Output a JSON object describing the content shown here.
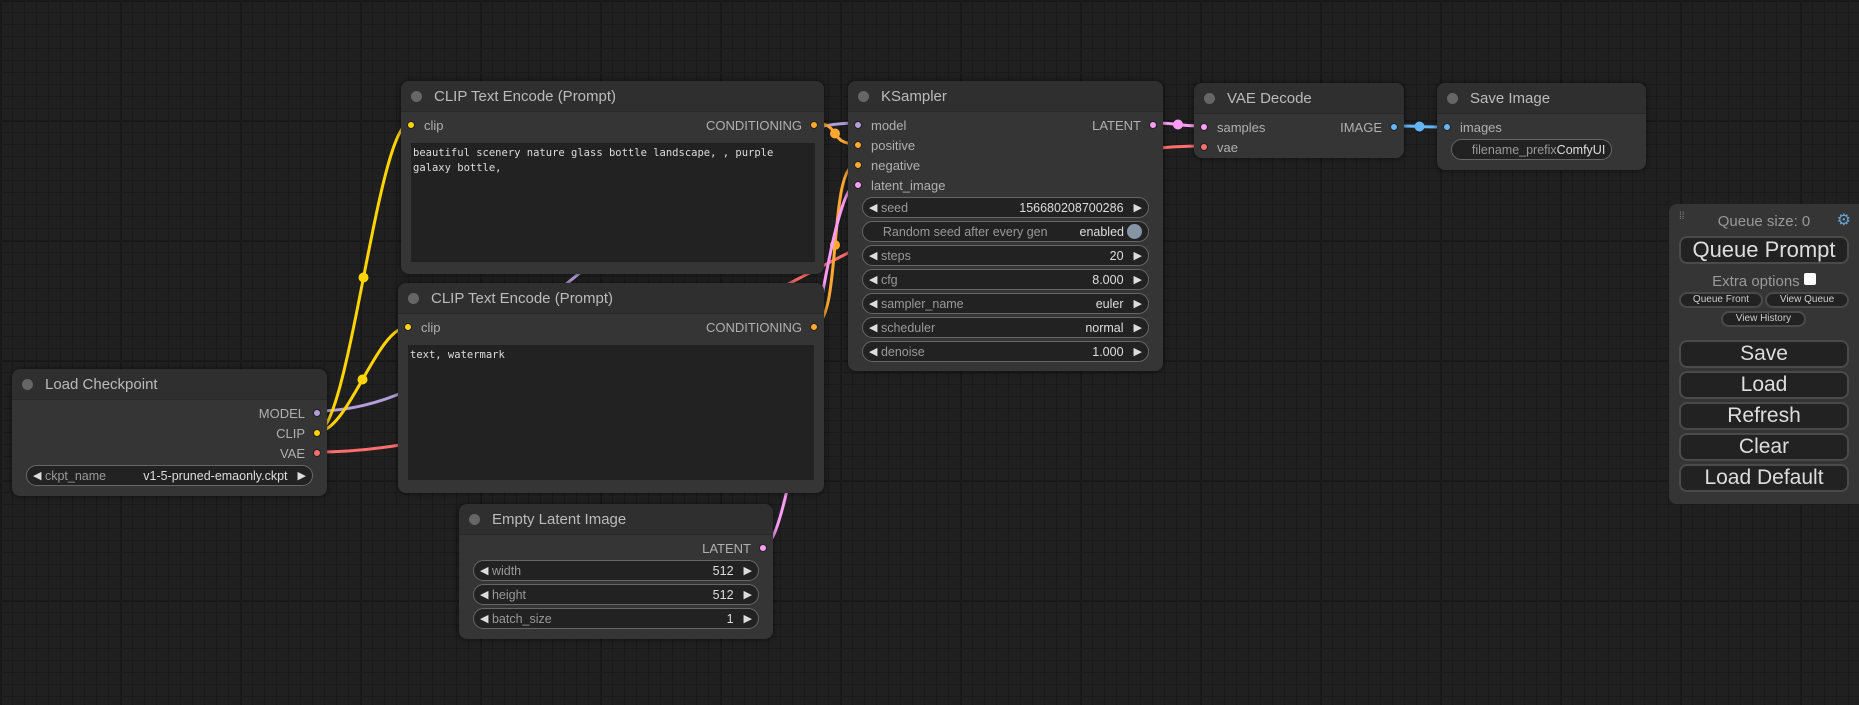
{
  "colors": {
    "MODEL": "#b39ddb",
    "CLIP": "#ffd500",
    "VAE": "#ff6e6e",
    "CONDITIONING": "#ffa931",
    "LATENT": "#ff9cf9",
    "IMAGE": "#64b5f6"
  },
  "nodes": {
    "clip1": {
      "title": "CLIP Text Encode (Prompt)",
      "inputs": [
        {
          "label": "clip",
          "type": "CLIP"
        }
      ],
      "outputs": [
        {
          "label": "CONDITIONING",
          "type": "CONDITIONING"
        }
      ],
      "text": "beautiful scenery nature glass bottle landscape, , purple galaxy bottle,"
    },
    "clip2": {
      "title": "CLIP Text Encode (Prompt)",
      "inputs": [
        {
          "label": "clip",
          "type": "CLIP"
        }
      ],
      "outputs": [
        {
          "label": "CONDITIONING",
          "type": "CONDITIONING"
        }
      ],
      "text": "text, watermark"
    },
    "ckpt": {
      "title": "Load Checkpoint",
      "inputs": [],
      "outputs": [
        {
          "label": "MODEL",
          "type": "MODEL"
        },
        {
          "label": "CLIP",
          "type": "CLIP"
        },
        {
          "label": "VAE",
          "type": "VAE"
        }
      ],
      "widgets": [
        {
          "name": "ckpt_name",
          "value": "v1-5-pruned-emaonly.ckpt"
        }
      ]
    },
    "latent": {
      "title": "Empty Latent Image",
      "inputs": [],
      "outputs": [
        {
          "label": "LATENT",
          "type": "LATENT"
        }
      ],
      "widgets": [
        {
          "name": "width",
          "value": "512"
        },
        {
          "name": "height",
          "value": "512"
        },
        {
          "name": "batch_size",
          "value": "1"
        }
      ]
    },
    "ksampler": {
      "title": "KSampler",
      "inputs": [
        {
          "label": "model",
          "type": "MODEL"
        },
        {
          "label": "positive",
          "type": "CONDITIONING"
        },
        {
          "label": "negative",
          "type": "CONDITIONING"
        },
        {
          "label": "latent_image",
          "type": "LATENT"
        }
      ],
      "outputs": [
        {
          "label": "LATENT",
          "type": "LATENT"
        }
      ],
      "widgets": [
        {
          "name": "seed",
          "value": "156680208700286"
        },
        {
          "name": "Random seed after every gen",
          "value": "enabled",
          "toggle": true
        },
        {
          "name": "steps",
          "value": "20"
        },
        {
          "name": "cfg",
          "value": "8.000"
        },
        {
          "name": "sampler_name",
          "value": "euler"
        },
        {
          "name": "scheduler",
          "value": "normal"
        },
        {
          "name": "denoise",
          "value": "1.000"
        }
      ]
    },
    "vae": {
      "title": "VAE Decode",
      "inputs": [
        {
          "label": "samples",
          "type": "LATENT"
        },
        {
          "label": "vae",
          "type": "VAE"
        }
      ],
      "outputs": [
        {
          "label": "IMAGE",
          "type": "IMAGE"
        }
      ]
    },
    "save": {
      "title": "Save Image",
      "inputs": [
        {
          "label": "images",
          "type": "IMAGE"
        }
      ],
      "outputs": [],
      "widgets": [
        {
          "name": "filename_prefix",
          "value": "ComfyUI",
          "text": true
        }
      ]
    }
  },
  "panel": {
    "queue_size": "Queue size: 0",
    "queue_prompt": "Queue Prompt",
    "extra_options": "Extra options",
    "extra_checked": false,
    "queue_front": "Queue Front",
    "view_queue": "View Queue",
    "view_history": "View History",
    "save": "Save",
    "load": "Load",
    "refresh": "Refresh",
    "clear": "Clear",
    "load_default": "Load Default"
  }
}
